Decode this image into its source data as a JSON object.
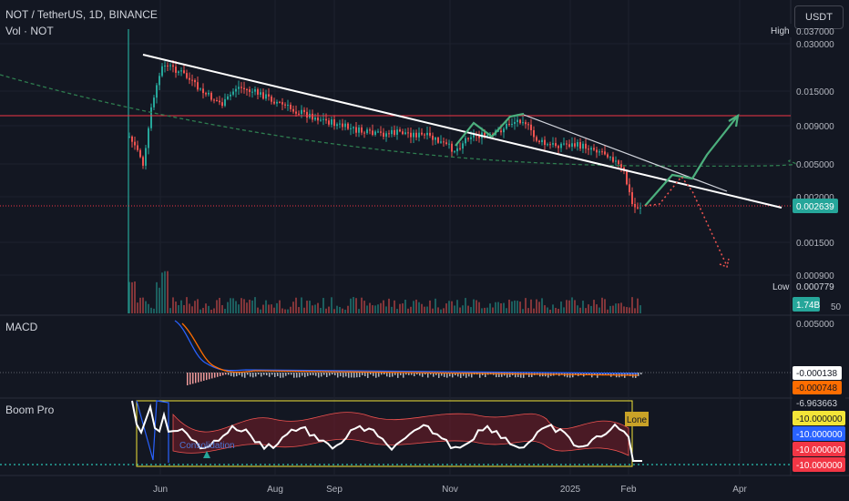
{
  "header": {
    "symbol_title": "NOT / TetherUS, 1D, BINANCE",
    "volume_label": "Vol · NOT",
    "currency_button": "USDT"
  },
  "price_axis": {
    "ticks": [
      "0.030000",
      "0.015000",
      "0.009000",
      "0.005000",
      "0.002000",
      "0.001500",
      "0.000900"
    ],
    "partial_top": "0.037000",
    "partial_bottom": "50",
    "high_label": "High",
    "low_label": "Low",
    "low_value": "0.000779",
    "last_price": "0.002639",
    "volume_badge": "1.74B"
  },
  "macd": {
    "label": "MACD",
    "axis_top": "0.005000",
    "values": [
      "-0.000138",
      "-0.000748"
    ]
  },
  "boom": {
    "label": "Boom Pro",
    "values": [
      "-6.963663",
      "-10.000000",
      "-10.000000",
      "-10.000000",
      "-10.000000"
    ],
    "annotation": "Lone",
    "chart_text": "Consolidation"
  },
  "time_axis": {
    "labels": [
      "Jun",
      "Aug",
      "Sep",
      "Nov",
      "2025",
      "Feb",
      "Apr"
    ]
  },
  "colors": {
    "background": "#131722",
    "bullish": "#26a69a",
    "bearish": "#ef5350",
    "trendline": "#ffffff",
    "projection": "#4caf7d",
    "resistance": "#f23645",
    "macd_line": "#2962ff",
    "signal_line": "#ff6d00",
    "boom_line": "#ffffff",
    "boom_box": "#f3e538"
  },
  "chart_data": [
    {
      "type": "line",
      "title": "NOT / TetherUS, 1D, BINANCE",
      "x": [
        "2024-05-16",
        "2024-05-28",
        "2024-06-05",
        "2024-06-20",
        "2024-07-10",
        "2024-08-05",
        "2024-09-01",
        "2024-10-01",
        "2024-11-01",
        "2024-11-20",
        "2024-12-05",
        "2025-01-01",
        "2025-01-20",
        "2025-02-01",
        "2025-02-05"
      ],
      "series": [
        {
          "values": [
            0.0085,
            0.0062,
            0.026,
            0.022,
            0.018,
            0.013,
            0.0095,
            0.0085,
            0.0072,
            0.01,
            0.0078,
            0.0065,
            0.0058,
            0.0032,
            0.002639
          ]
        }
      ],
      "price_axis_scale": "log",
      "resistance_level": 0.0098,
      "last_price": 0.002639,
      "low": 0.000779
    },
    {
      "type": "line",
      "title": "MACD",
      "series": [
        {
          "values": [
            -0.000138
          ]
        },
        {
          "values": [
            -0.000748
          ]
        }
      ]
    },
    {
      "type": "line",
      "title": "Boom Pro",
      "series": [
        {
          "values": [
            -6.963663
          ]
        },
        {
          "values": [
            -10.0
          ]
        },
        {
          "values": [
            -10.0
          ]
        },
        {
          "values": [
            -10.0
          ]
        },
        {
          "values": [
            -10.0
          ]
        }
      ]
    }
  ]
}
